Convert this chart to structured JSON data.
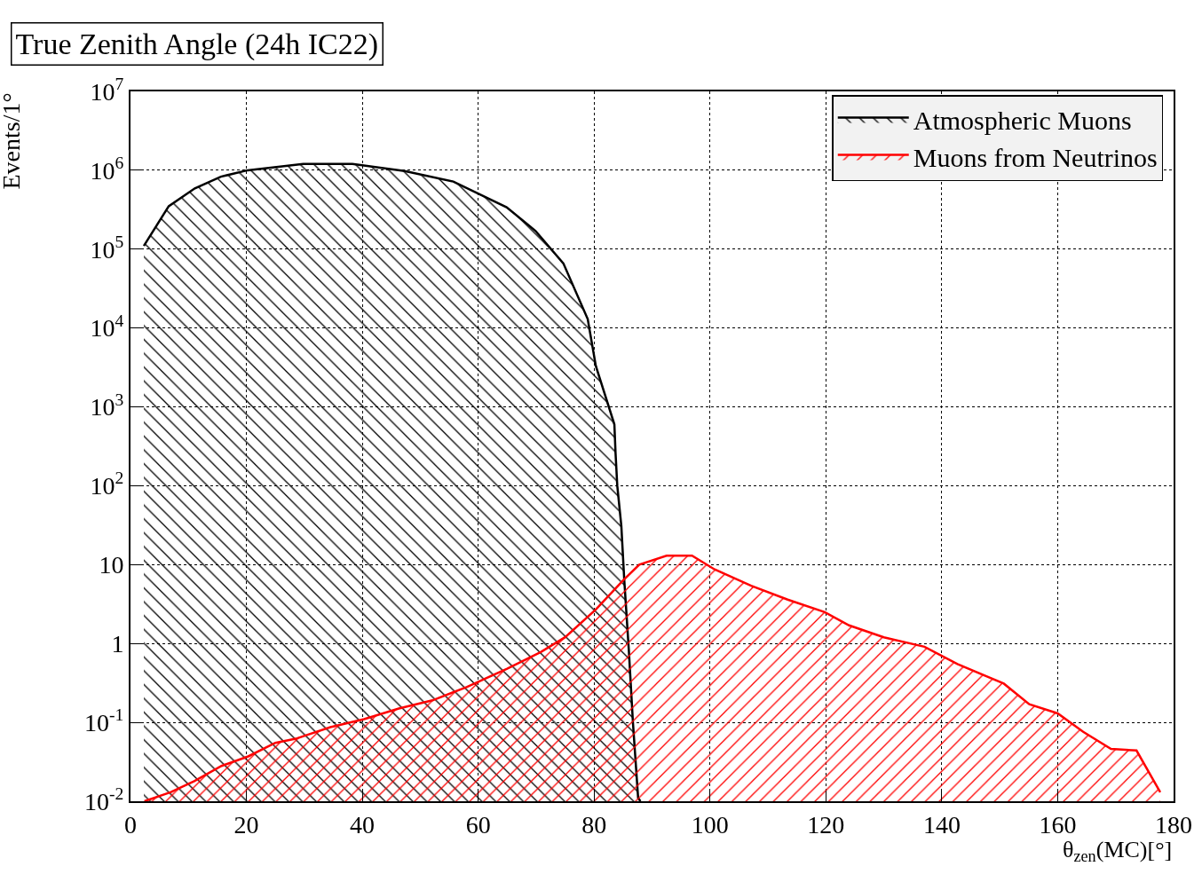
{
  "chart_data": {
    "type": "area",
    "title": "True Zenith Angle (24h IC22)",
    "xlabel": "θ$_{zen}$(MC)[°]",
    "ylabel": "Events/1°",
    "log": "y",
    "grid": true,
    "legend": "top right",
    "xlim": [
      0,
      180
    ],
    "xticks": [
      0,
      20,
      40,
      60,
      80,
      100,
      120,
      140,
      160,
      180
    ],
    "ylim": [
      0.01,
      10000000
    ],
    "yticks": [
      {
        "value": 0.01,
        "label": "10$^{-2}$"
      },
      {
        "value": 0.1,
        "label": "10$^{-1}$"
      },
      1,
      10,
      {
        "value": 100,
        "label": "10$^{2}$"
      },
      {
        "value": 1000,
        "label": "10$^{3}$"
      },
      {
        "value": 10000,
        "label": "10$^{4}$"
      },
      {
        "value": 100000,
        "label": "10$^{5}$"
      },
      {
        "value": 1000000,
        "label": "10$^{6}$"
      },
      {
        "value": 10000000,
        "label": "10$^{7}$"
      }
    ],
    "series": [
      {
        "name": "Atmospheric Muons",
        "color": "#000000",
        "x": [
          2.3,
          6.6,
          11.1,
          15.6,
          20.2,
          29.8,
          38.3,
          47.3,
          55.7,
          64.9,
          69.9,
          74.7,
          78.9,
          80.3,
          83.5,
          83.7,
          84,
          84.7,
          85.2,
          86,
          86.7,
          87.6,
          88
        ],
        "values": [
          110000,
          350000,
          590000,
          830000,
          1000000,
          1200000,
          1200000,
          980000,
          720000,
          340000,
          170000,
          66000,
          13000,
          3300,
          600,
          260,
          100,
          31,
          6.5,
          0.81,
          0.1,
          0.011,
          0.01
        ]
      },
      {
        "name": "Muons from Neutrinos",
        "color": "#ff0000",
        "x": [
          2.4,
          6.9,
          11,
          15.7,
          20.3,
          25,
          28.5,
          34.5,
          40.3,
          46.3,
          52.1,
          58,
          65,
          70.8,
          75,
          80.3,
          85,
          87.8,
          92.5,
          96.9,
          100.8,
          107.1,
          113.4,
          119.8,
          124,
          130,
          137,
          142.7,
          150.7,
          155.1,
          160,
          164.4,
          169.2,
          173.6,
          177.7
        ],
        "values": [
          0.01,
          0.013,
          0.018,
          0.028,
          0.037,
          0.055,
          0.062,
          0.087,
          0.11,
          0.15,
          0.19,
          0.28,
          0.48,
          0.78,
          1.2,
          2.7,
          6.3,
          10,
          13,
          13,
          8.7,
          5.4,
          3.6,
          2.5,
          1.7,
          1.2,
          0.91,
          0.55,
          0.31,
          0.17,
          0.13,
          0.076,
          0.046,
          0.044,
          0.013
        ]
      }
    ]
  }
}
